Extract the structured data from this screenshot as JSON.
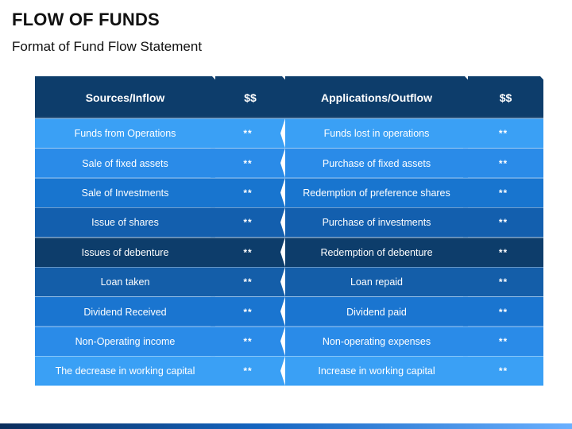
{
  "title": "FLOW OF FUNDS",
  "subtitle": "Format of Fund Flow Statement",
  "colors": {
    "header": "#0d3d6b",
    "row_shades": [
      "#3aa0f5",
      "#2a8be8",
      "#1875cf",
      "#135fae",
      "#0d3d6b",
      "#145ea9",
      "#1a75d0",
      "#2a8be8",
      "#3aa0f5"
    ],
    "bottom_bar_start": "#0b2d5c",
    "bottom_bar_end": "#6ab0ff"
  },
  "table": {
    "headers": [
      "Sources/Inflow",
      "$$",
      "Applications/Outflow",
      "$$"
    ],
    "rows": [
      {
        "source": "Funds from Operations",
        "source_amt": "**",
        "application": "Funds lost in operations",
        "application_amt": "**"
      },
      {
        "source": "Sale of fixed assets",
        "source_amt": "**",
        "application": "Purchase of fixed assets",
        "application_amt": "**"
      },
      {
        "source": "Sale of Investments",
        "source_amt": "**",
        "application": "Redemption of preference shares",
        "application_amt": "**"
      },
      {
        "source": "Issue of shares",
        "source_amt": "**",
        "application": "Purchase of investments",
        "application_amt": "**"
      },
      {
        "source": "Issues of debenture",
        "source_amt": "**",
        "application": "Redemption of debenture",
        "application_amt": "**"
      },
      {
        "source": "Loan taken",
        "source_amt": "**",
        "application": "Loan repaid",
        "application_amt": "**"
      },
      {
        "source": "Dividend Received",
        "source_amt": "**",
        "application": "Dividend paid",
        "application_amt": "**"
      },
      {
        "source": "Non-Operating income",
        "source_amt": "**",
        "application": "Non-operating expenses",
        "application_amt": "**"
      },
      {
        "source": "The decrease in working capital",
        "source_amt": "**",
        "application": "Increase in working capital",
        "application_amt": "**"
      }
    ]
  }
}
